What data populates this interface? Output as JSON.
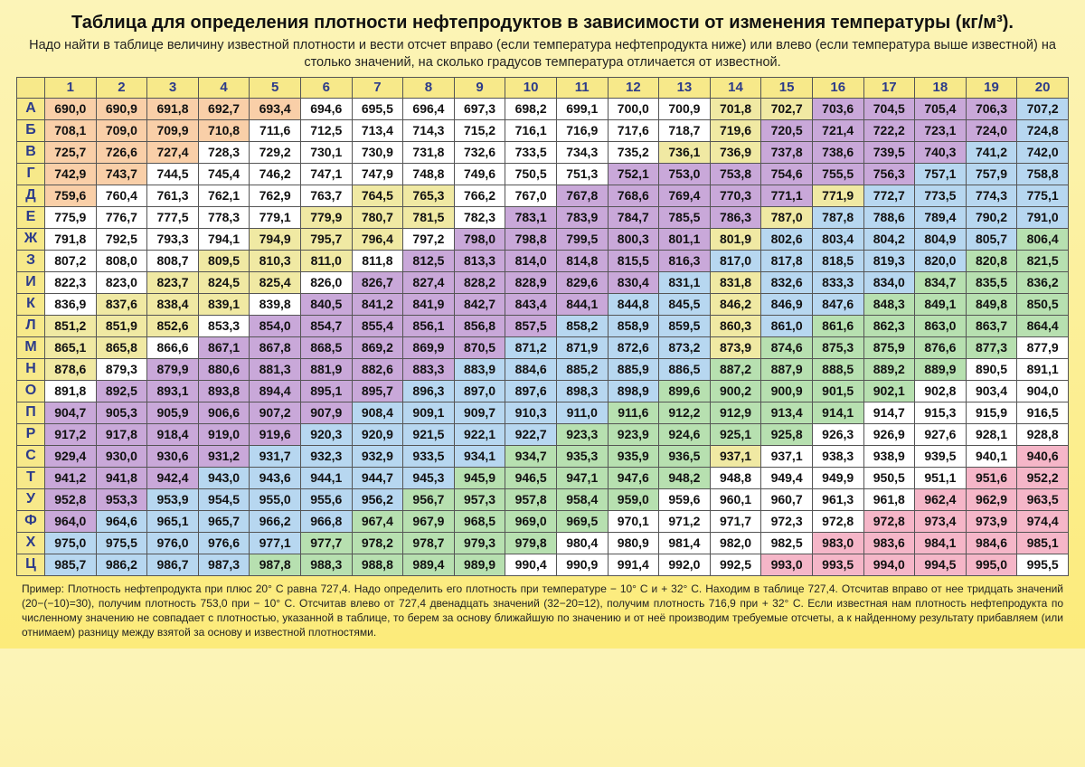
{
  "title": "Таблица для определения плотности нефтепродуктов в зависимости от изменения температуры (кг/м³).",
  "subtitle": "Надо найти в таблице величину известной плотности и вести отсчет вправо (если температура нефтепродукта ниже) или влево (если температура выше известной) на столько значений, на сколько градусов температура отличается от известной.",
  "footnote": "Пример: Плотность нефтепродукта при плюс 20° С равна 727,4.  Надо определить его плотность при температуре − 10° С и + 32° С.  Находим в таблице 727,4. Отсчитав вправо от нее тридцать значений (20−(−10)=30), получим плотность 753,0 при − 10° С.  Отсчитав влево от 727,4 двенадцать значений (32−20=12), получим плотность 716,9 при + 32° С. Если известная нам плотность нефтепродукта по численному значению не совпадает с плотностью, указанной в таблице, то берем за основу ближайшую по значению и от неё производим требуемые отсчеты, а к найденному результату прибавляем (или отнимаем) разницу между взятой за основу и известной плотностями.",
  "columns": [
    "1",
    "2",
    "3",
    "4",
    "5",
    "6",
    "7",
    "8",
    "9",
    "10",
    "11",
    "12",
    "13",
    "14",
    "15",
    "16",
    "17",
    "18",
    "19",
    "20"
  ],
  "rowLabels": [
    "А",
    "Б",
    "В",
    "Г",
    "Д",
    "Е",
    "Ж",
    "З",
    "И",
    "К",
    "Л",
    "М",
    "Н",
    "О",
    "П",
    "Р",
    "С",
    "Т",
    "У",
    "Ф",
    "Х",
    "Ц"
  ],
  "rows": [
    [
      "690,0",
      "690,9",
      "691,8",
      "692,7",
      "693,4",
      "694,6",
      "695,5",
      "696,4",
      "697,3",
      "698,2",
      "699,1",
      "700,0",
      "700,9",
      "701,8",
      "702,7",
      "703,6",
      "704,5",
      "705,4",
      "706,3",
      "707,2"
    ],
    [
      "708,1",
      "709,0",
      "709,9",
      "710,8",
      "711,6",
      "712,5",
      "713,4",
      "714,3",
      "715,2",
      "716,1",
      "716,9",
      "717,6",
      "718,7",
      "719,6",
      "720,5",
      "721,4",
      "722,2",
      "723,1",
      "724,0",
      "724,8"
    ],
    [
      "725,7",
      "726,6",
      "727,4",
      "728,3",
      "729,2",
      "730,1",
      "730,9",
      "731,8",
      "732,6",
      "733,5",
      "734,3",
      "735,2",
      "736,1",
      "736,9",
      "737,8",
      "738,6",
      "739,5",
      "740,3",
      "741,2",
      "742,0"
    ],
    [
      "742,9",
      "743,7",
      "744,5",
      "745,4",
      "746,2",
      "747,1",
      "747,9",
      "748,8",
      "749,6",
      "750,5",
      "751,3",
      "752,1",
      "753,0",
      "753,8",
      "754,6",
      "755,5",
      "756,3",
      "757,1",
      "757,9",
      "758,8"
    ],
    [
      "759,6",
      "760,4",
      "761,3",
      "762,1",
      "762,9",
      "763,7",
      "764,5",
      "765,3",
      "766,2",
      "767,0",
      "767,8",
      "768,6",
      "769,4",
      "770,3",
      "771,1",
      "771,9",
      "772,7",
      "773,5",
      "774,3",
      "775,1"
    ],
    [
      "775,9",
      "776,7",
      "777,5",
      "778,3",
      "779,1",
      "779,9",
      "780,7",
      "781,5",
      "782,3",
      "783,1",
      "783,9",
      "784,7",
      "785,5",
      "786,3",
      "787,0",
      "787,8",
      "788,6",
      "789,4",
      "790,2",
      "791,0"
    ],
    [
      "791,8",
      "792,5",
      "793,3",
      "794,1",
      "794,9",
      "795,7",
      "796,4",
      "797,2",
      "798,0",
      "798,8",
      "799,5",
      "800,3",
      "801,1",
      "801,9",
      "802,6",
      "803,4",
      "804,2",
      "804,9",
      "805,7",
      "806,4"
    ],
    [
      "807,2",
      "808,0",
      "808,7",
      "809,5",
      "810,3",
      "811,0",
      "811,8",
      "812,5",
      "813,3",
      "814,0",
      "814,8",
      "815,5",
      "816,3",
      "817,0",
      "817,8",
      "818,5",
      "819,3",
      "820,0",
      "820,8",
      "821,5"
    ],
    [
      "822,3",
      "823,0",
      "823,7",
      "824,5",
      "825,4",
      "826,0",
      "826,7",
      "827,4",
      "828,2",
      "828,9",
      "829,6",
      "830,4",
      "831,1",
      "831,8",
      "832,6",
      "833,3",
      "834,0",
      "834,7",
      "835,5",
      "836,2"
    ],
    [
      "836,9",
      "837,6",
      "838,4",
      "839,1",
      "839,8",
      "840,5",
      "841,2",
      "841,9",
      "842,7",
      "843,4",
      "844,1",
      "844,8",
      "845,5",
      "846,2",
      "846,9",
      "847,6",
      "848,3",
      "849,1",
      "849,8",
      "850,5"
    ],
    [
      "851,2",
      "851,9",
      "852,6",
      "853,3",
      "854,0",
      "854,7",
      "855,4",
      "856,1",
      "856,8",
      "857,5",
      "858,2",
      "858,9",
      "859,5",
      "860,3",
      "861,0",
      "861,6",
      "862,3",
      "863,0",
      "863,7",
      "864,4"
    ],
    [
      "865,1",
      "865,8",
      "866,6",
      "867,1",
      "867,8",
      "868,5",
      "869,2",
      "869,9",
      "870,5",
      "871,2",
      "871,9",
      "872,6",
      "873,2",
      "873,9",
      "874,6",
      "875,3",
      "875,9",
      "876,6",
      "877,3",
      "877,9"
    ],
    [
      "878,6",
      "879,3",
      "879,9",
      "880,6",
      "881,3",
      "881,9",
      "882,6",
      "883,3",
      "883,9",
      "884,6",
      "885,2",
      "885,9",
      "886,5",
      "887,2",
      "887,9",
      "888,5",
      "889,2",
      "889,9",
      "890,5",
      "891,1"
    ],
    [
      "891,8",
      "892,5",
      "893,1",
      "893,8",
      "894,4",
      "895,1",
      "895,7",
      "896,3",
      "897,0",
      "897,6",
      "898,3",
      "898,9",
      "899,6",
      "900,2",
      "900,9",
      "901,5",
      "902,1",
      "902,8",
      "903,4",
      "904,0"
    ],
    [
      "904,7",
      "905,3",
      "905,9",
      "906,6",
      "907,2",
      "907,9",
      "908,4",
      "909,1",
      "909,7",
      "910,3",
      "911,0",
      "911,6",
      "912,2",
      "912,9",
      "913,4",
      "914,1",
      "914,7",
      "915,3",
      "915,9",
      "916,5"
    ],
    [
      "917,2",
      "917,8",
      "918,4",
      "919,0",
      "919,6",
      "920,3",
      "920,9",
      "921,5",
      "922,1",
      "922,7",
      "923,3",
      "923,9",
      "924,6",
      "925,1",
      "925,8",
      "926,3",
      "926,9",
      "927,6",
      "928,1",
      "928,8"
    ],
    [
      "929,4",
      "930,0",
      "930,6",
      "931,2",
      "931,7",
      "932,3",
      "932,9",
      "933,5",
      "934,1",
      "934,7",
      "935,3",
      "935,9",
      "936,5",
      "937,1",
      "937,1",
      "938,3",
      "938,9",
      "939,5",
      "940,1",
      "940,6"
    ],
    [
      "941,2",
      "941,8",
      "942,4",
      "943,0",
      "943,6",
      "944,1",
      "944,7",
      "945,3",
      "945,9",
      "946,5",
      "947,1",
      "947,6",
      "948,2",
      "948,8",
      "949,4",
      "949,9",
      "950,5",
      "951,1",
      "951,6",
      "952,2"
    ],
    [
      "952,8",
      "953,3",
      "953,9",
      "954,5",
      "955,0",
      "955,6",
      "956,2",
      "956,7",
      "957,3",
      "957,8",
      "958,4",
      "959,0",
      "959,6",
      "960,1",
      "960,7",
      "961,3",
      "961,8",
      "962,4",
      "962,9",
      "963,5"
    ],
    [
      "964,0",
      "964,6",
      "965,1",
      "965,7",
      "966,2",
      "966,8",
      "967,4",
      "967,9",
      "968,5",
      "969,0",
      "969,5",
      "970,1",
      "971,2",
      "971,7",
      "972,3",
      "972,8",
      "972,8",
      "973,4",
      "973,9",
      "974,4"
    ],
    [
      "975,0",
      "975,5",
      "976,0",
      "976,6",
      "977,1",
      "977,7",
      "978,2",
      "978,7",
      "979,3",
      "979,8",
      "980,4",
      "980,9",
      "981,4",
      "982,0",
      "982,5",
      "983,0",
      "983,6",
      "984,1",
      "984,6",
      "985,1"
    ],
    [
      "985,7",
      "986,2",
      "986,7",
      "987,3",
      "987,8",
      "988,3",
      "988,8",
      "989,4",
      "989,9",
      "990,4",
      "990,9",
      "991,4",
      "992,0",
      "992,5",
      "993,0",
      "993,5",
      "994,0",
      "994,5",
      "995,0",
      "995,5"
    ]
  ],
  "colorClasses": {
    "0": "c0",
    "1": "c1",
    "2": "c2",
    "3": "c3",
    "4": "c4",
    "5": "c5",
    "6": "c6"
  },
  "cellColors": [
    [
      1,
      1,
      1,
      1,
      1,
      0,
      0,
      0,
      0,
      0,
      0,
      0,
      0,
      6,
      6,
      2,
      2,
      2,
      2,
      4
    ],
    [
      1,
      1,
      1,
      1,
      0,
      0,
      0,
      0,
      0,
      0,
      0,
      0,
      0,
      6,
      2,
      2,
      2,
      2,
      2,
      4
    ],
    [
      1,
      1,
      1,
      0,
      0,
      0,
      0,
      0,
      0,
      0,
      0,
      0,
      6,
      6,
      2,
      2,
      2,
      2,
      4,
      4
    ],
    [
      1,
      1,
      0,
      0,
      0,
      0,
      0,
      0,
      0,
      0,
      0,
      2,
      2,
      2,
      2,
      2,
      2,
      4,
      4,
      4
    ],
    [
      1,
      0,
      0,
      0,
      0,
      0,
      6,
      6,
      0,
      0,
      2,
      2,
      2,
      2,
      2,
      6,
      4,
      4,
      4,
      4
    ],
    [
      0,
      0,
      0,
      0,
      0,
      6,
      6,
      6,
      0,
      2,
      2,
      2,
      2,
      2,
      6,
      4,
      4,
      4,
      4,
      4
    ],
    [
      0,
      0,
      0,
      0,
      6,
      6,
      6,
      0,
      2,
      2,
      2,
      2,
      2,
      6,
      4,
      4,
      4,
      4,
      4,
      3
    ],
    [
      0,
      0,
      0,
      6,
      6,
      6,
      0,
      2,
      2,
      2,
      2,
      2,
      2,
      4,
      4,
      4,
      4,
      4,
      3,
      3
    ],
    [
      0,
      0,
      6,
      6,
      6,
      0,
      2,
      2,
      2,
      2,
      2,
      2,
      4,
      6,
      4,
      4,
      4,
      3,
      3,
      3
    ],
    [
      0,
      6,
      6,
      6,
      0,
      2,
      2,
      2,
      2,
      2,
      2,
      4,
      4,
      6,
      4,
      4,
      3,
      3,
      3,
      3
    ],
    [
      6,
      6,
      6,
      0,
      2,
      2,
      2,
      2,
      2,
      2,
      4,
      4,
      4,
      6,
      4,
      3,
      3,
      3,
      3,
      3
    ],
    [
      6,
      6,
      0,
      2,
      2,
      2,
      2,
      2,
      2,
      4,
      4,
      4,
      4,
      6,
      3,
      3,
      3,
      3,
      3,
      0
    ],
    [
      6,
      0,
      2,
      2,
      2,
      2,
      2,
      2,
      4,
      4,
      4,
      4,
      4,
      3,
      3,
      3,
      3,
      3,
      0,
      0
    ],
    [
      0,
      2,
      2,
      2,
      2,
      2,
      2,
      4,
      4,
      4,
      4,
      4,
      3,
      3,
      3,
      3,
      3,
      0,
      0,
      0
    ],
    [
      2,
      2,
      2,
      2,
      2,
      2,
      4,
      4,
      4,
      4,
      4,
      3,
      3,
      3,
      3,
      3,
      0,
      0,
      0,
      0
    ],
    [
      2,
      2,
      2,
      2,
      2,
      4,
      4,
      4,
      4,
      4,
      3,
      3,
      3,
      3,
      3,
      0,
      0,
      0,
      0,
      0
    ],
    [
      2,
      2,
      2,
      2,
      4,
      4,
      4,
      4,
      4,
      3,
      3,
      3,
      3,
      6,
      0,
      0,
      0,
      0,
      0,
      5
    ],
    [
      2,
      2,
      2,
      4,
      4,
      4,
      4,
      4,
      3,
      3,
      3,
      3,
      3,
      0,
      0,
      0,
      0,
      0,
      5,
      5
    ],
    [
      2,
      2,
      4,
      4,
      4,
      4,
      4,
      3,
      3,
      3,
      3,
      3,
      0,
      0,
      0,
      0,
      0,
      5,
      5,
      5
    ],
    [
      2,
      4,
      4,
      4,
      4,
      4,
      3,
      3,
      3,
      3,
      3,
      0,
      0,
      0,
      0,
      0,
      5,
      5,
      5,
      5
    ],
    [
      4,
      4,
      4,
      4,
      4,
      3,
      3,
      3,
      3,
      3,
      0,
      0,
      0,
      0,
      0,
      5,
      5,
      5,
      5,
      5
    ],
    [
      4,
      4,
      4,
      4,
      3,
      3,
      3,
      3,
      3,
      0,
      0,
      0,
      0,
      0,
      5,
      5,
      5,
      5,
      5,
      0
    ]
  ]
}
